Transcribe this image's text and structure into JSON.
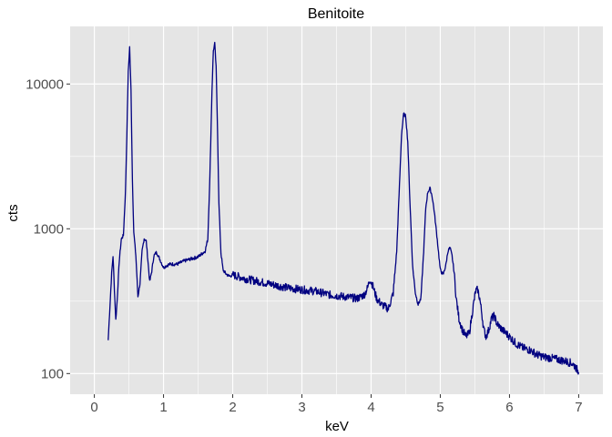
{
  "chart_data": {
    "type": "line",
    "title": "Benitoite",
    "xlabel": "keV",
    "ylabel": "cts",
    "xlim": [
      -0.35,
      7.35
    ],
    "ylim": [
      72,
      25000
    ],
    "y_scale": "log",
    "x_ticks": [
      0,
      1,
      2,
      3,
      4,
      5,
      6,
      7
    ],
    "x_tick_labels": [
      "0",
      "1",
      "2",
      "3",
      "4",
      "5",
      "6",
      "7"
    ],
    "y_ticks": [
      100,
      1000,
      10000
    ],
    "y_tick_labels": [
      "100",
      "1000",
      "10000"
    ],
    "grid": true,
    "legend": "none",
    "colors": {
      "series": "#000080",
      "panel": "#e5e5e5",
      "grid": "#ffffff"
    },
    "series": [
      {
        "x": [
          0.2,
          0.22,
          0.25,
          0.27,
          0.29,
          0.31,
          0.33,
          0.36,
          0.39,
          0.42,
          0.45,
          0.47,
          0.49,
          0.51,
          0.53,
          0.55,
          0.57,
          0.6,
          0.63,
          0.66,
          0.69,
          0.72,
          0.75,
          0.78,
          0.8,
          0.83,
          0.86,
          0.9,
          0.95,
          1.0,
          1.05,
          1.1,
          1.2,
          1.3,
          1.4,
          1.5,
          1.6,
          1.64,
          1.67,
          1.7,
          1.72,
          1.74,
          1.76,
          1.78,
          1.8,
          1.83,
          1.86,
          1.9,
          1.95,
          2.0,
          2.2,
          2.4,
          2.6,
          2.8,
          3.0,
          3.2,
          3.4,
          3.6,
          3.8,
          3.9,
          3.95,
          3.98,
          4.02,
          4.08,
          4.15,
          4.25,
          4.32,
          4.37,
          4.41,
          4.44,
          4.47,
          4.5,
          4.53,
          4.56,
          4.6,
          4.64,
          4.68,
          4.72,
          4.76,
          4.79,
          4.82,
          4.85,
          4.88,
          4.91,
          4.95,
          5.0,
          5.04,
          5.08,
          5.11,
          5.14,
          5.17,
          5.2,
          5.23,
          5.27,
          5.32,
          5.37,
          5.42,
          5.47,
          5.51,
          5.54,
          5.57,
          5.6,
          5.63,
          5.66,
          5.7,
          5.74,
          5.78,
          5.82,
          5.86,
          5.9,
          6.0,
          6.1,
          6.2,
          6.3,
          6.4,
          6.5,
          6.6,
          6.7,
          6.8,
          6.9,
          6.95,
          7.0
        ],
        "y": [
          170,
          260,
          490,
          650,
          380,
          235,
          320,
          600,
          850,
          900,
          1800,
          4500,
          12000,
          18000,
          9000,
          2200,
          950,
          650,
          340,
          420,
          700,
          860,
          820,
          560,
          430,
          510,
          650,
          690,
          610,
          540,
          560,
          570,
          570,
          600,
          620,
          640,
          700,
          850,
          2300,
          9000,
          17000,
          19000,
          13000,
          5000,
          1500,
          680,
          520,
          490,
          470,
          480,
          450,
          430,
          410,
          390,
          380,
          370,
          350,
          340,
          330,
          350,
          390,
          450,
          410,
          330,
          300,
          280,
          360,
          700,
          2000,
          4500,
          6200,
          6000,
          4000,
          1600,
          550,
          360,
          300,
          330,
          700,
          1400,
          1800,
          1900,
          1700,
          1350,
          900,
          520,
          480,
          560,
          700,
          740,
          650,
          500,
          330,
          240,
          200,
          180,
          190,
          280,
          370,
          380,
          330,
          260,
          200,
          180,
          200,
          240,
          250,
          220,
          210,
          200,
          180,
          160,
          150,
          145,
          135,
          130,
          128,
          125,
          122,
          118,
          112,
          102
        ]
      }
    ]
  }
}
